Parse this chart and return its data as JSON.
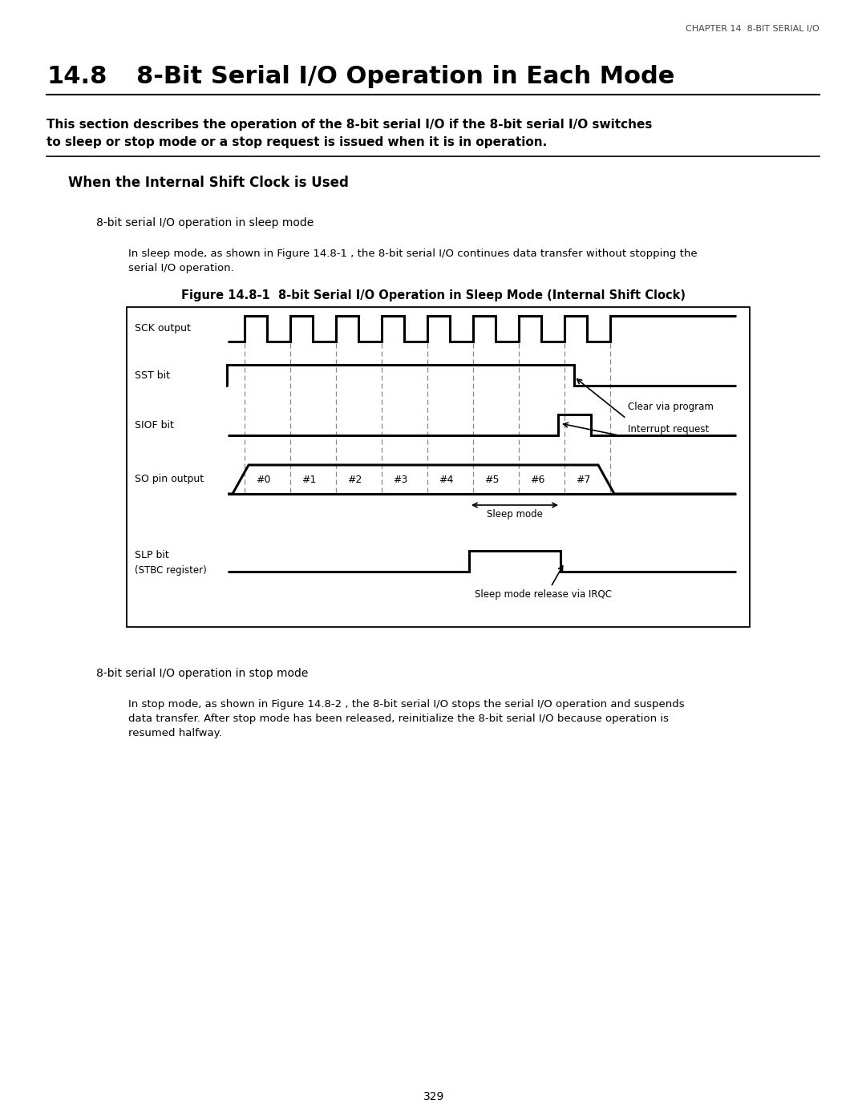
{
  "page_header": "CHAPTER 14  8-BIT SERIAL I/O",
  "section_number": "14.8",
  "section_title_text": "8-Bit Serial I/O Operation in Each Mode",
  "intro_line1": "This section describes the operation of the 8-bit serial I/O if the 8-bit serial I/O switches",
  "intro_line2": "to sleep or stop mode or a stop request is issued when it is in operation.",
  "subsection_title": "When the Internal Shift Clock is Used",
  "sleep_mode_label": "8-bit serial I/O operation in sleep mode",
  "sleep_para_line1": "In sleep mode, as shown in Figure 14.8-1 , the 8-bit serial I/O continues data transfer without stopping the",
  "sleep_para_line2": "serial I/O operation.",
  "figure_caption": "Figure 14.8-1  8-bit Serial I/O Operation in Sleep Mode (Internal Shift Clock)",
  "stop_mode_label": "8-bit serial I/O operation in stop mode",
  "stop_para_line1": "In stop mode, as shown in Figure 14.8-2 , the 8-bit serial I/O stops the serial I/O operation and suspends",
  "stop_para_line2": "data transfer. After stop mode has been released, reinitialize the 8-bit serial I/O because operation is",
  "stop_para_line3": "resumed halfway.",
  "page_number": "329",
  "bg_color": "#ffffff",
  "text_color": "#000000"
}
